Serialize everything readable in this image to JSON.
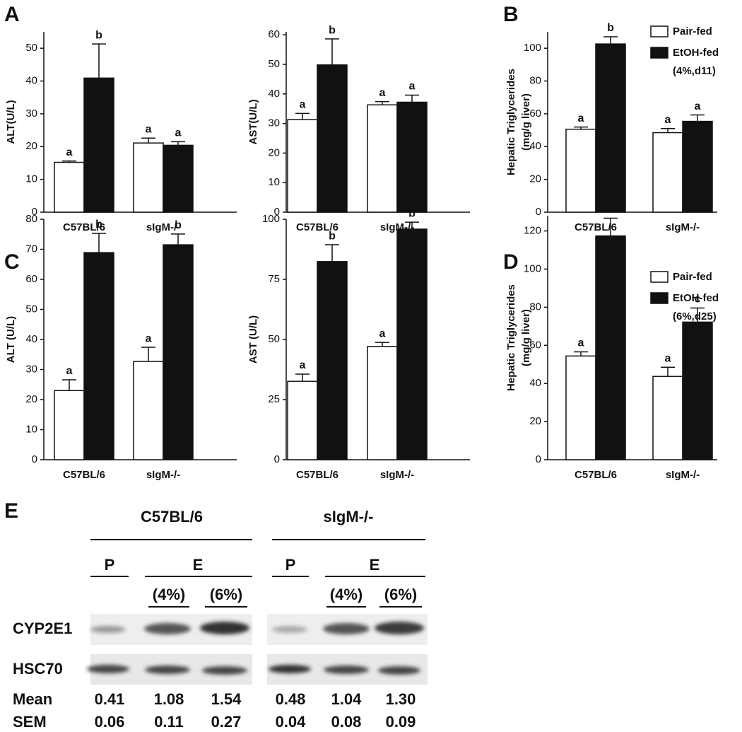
{
  "panels": [
    "A",
    "B",
    "C",
    "D",
    "E"
  ],
  "chart_data": [
    {
      "type": "bar",
      "ylabel": [
        "ALT(U/L)"
      ],
      "categories": [
        "C57BL/6",
        "sIgM-/-"
      ],
      "ylim": [
        0,
        55
      ],
      "yticks": [
        0,
        10,
        20,
        30,
        40,
        50
      ],
      "series": [
        {
          "name": "Pair-fed",
          "color": "#ffffff",
          "values": [
            15.2,
            21.1
          ],
          "errors": [
            0.4,
            1.5
          ],
          "letters": [
            "a",
            "a"
          ]
        },
        {
          "name": "EtOH-fed",
          "color": "#111111",
          "values": [
            40.9,
            20.4
          ],
          "errors": [
            10.4,
            1.1
          ],
          "letters": [
            "b",
            "a"
          ]
        }
      ]
    },
    {
      "type": "bar",
      "ylabel": [
        "AST(U/L)"
      ],
      "categories": [
        "C57BL/6",
        "sIgM-/-"
      ],
      "ylim": [
        0,
        61
      ],
      "yticks": [
        0,
        10,
        20,
        30,
        40,
        50,
        60
      ],
      "series": [
        {
          "name": "Pair-fed",
          "color": "#ffffff",
          "values": [
            31.3,
            36.3
          ],
          "errors": [
            2.1,
            1.1
          ],
          "letters": [
            "a",
            "a"
          ]
        },
        {
          "name": "EtOH-fed",
          "color": "#111111",
          "values": [
            49.8,
            37.2
          ],
          "errors": [
            8.8,
            2.4
          ],
          "letters": [
            "b",
            "a"
          ]
        }
      ]
    },
    {
      "type": "bar",
      "ylabel": [
        "Hepatic Triglycerides",
        "(mg/g liver)"
      ],
      "categories": [
        "C57BL/6",
        "sIgM-/-"
      ],
      "ylim": [
        0,
        110
      ],
      "yticks": [
        0,
        20,
        40,
        60,
        80,
        100
      ],
      "legend_note": "(4%,d11)",
      "series": [
        {
          "name": "Pair-fed",
          "color": "#ffffff",
          "values": [
            50.6,
            48.5
          ],
          "errors": [
            1.3,
            2.5
          ],
          "letters": [
            "a",
            "a"
          ]
        },
        {
          "name": "EtOH-fed",
          "color": "#111111",
          "values": [
            102.6,
            55.4
          ],
          "errors": [
            4.4,
            3.9
          ],
          "letters": [
            "b",
            "a"
          ]
        }
      ]
    },
    {
      "type": "bar",
      "ylabel": [
        "ALT (U/L)"
      ],
      "categories": [
        "C57BL/6",
        "sIgM-/-"
      ],
      "ylim": [
        0,
        80
      ],
      "yticks": [
        0,
        10,
        20,
        30,
        40,
        50,
        60,
        70,
        80
      ],
      "series": [
        {
          "name": "Pair-fed",
          "color": "#ffffff",
          "values": [
            23,
            32.7
          ],
          "errors": [
            3.6,
            4.7
          ],
          "letters": [
            "a",
            "a"
          ]
        },
        {
          "name": "EtOH-fed",
          "color": "#111111",
          "values": [
            68.9,
            71.5
          ],
          "errors": [
            6.4,
            3.6
          ],
          "letters": [
            "b",
            "b"
          ]
        }
      ]
    },
    {
      "type": "bar",
      "ylabel": [
        "AST (U/L)"
      ],
      "categories": [
        "C57BL/6",
        "sIgM-/-"
      ],
      "ylim": [
        0,
        100
      ],
      "yticks": [
        0,
        25,
        50,
        75,
        100
      ],
      "series": [
        {
          "name": "Pair-fed",
          "color": "#ffffff",
          "values": [
            32.6,
            47.1
          ],
          "errors": [
            3,
            1.7
          ],
          "letters": [
            "a",
            "a"
          ]
        },
        {
          "name": "EtOH-fed",
          "color": "#111111",
          "values": [
            82.4,
            95.9
          ],
          "errors": [
            7,
            2.9
          ],
          "letters": [
            "b",
            "b"
          ]
        }
      ]
    },
    {
      "type": "bar",
      "ylabel": [
        "Hepatic Triglycerides",
        "(mg/g liver)"
      ],
      "categories": [
        "C57BL/6",
        "sIgM-/-"
      ],
      "ylim": [
        0,
        128
      ],
      "yticks": [
        0,
        20,
        40,
        60,
        80,
        100,
        120
      ],
      "legend_note": "(6%,d25)",
      "series": [
        {
          "name": "Pair-fed",
          "color": "#ffffff",
          "values": [
            54.4,
            43.7
          ],
          "errors": [
            2.2,
            4.8
          ],
          "letters": [
            "a",
            "a"
          ]
        },
        {
          "name": "EtOH-fed",
          "color": "#111111",
          "values": [
            117.4,
            72.2
          ],
          "errors": [
            9.3,
            7.4
          ],
          "letters": [
            "b",
            "c"
          ]
        }
      ]
    }
  ],
  "blot": {
    "groups": [
      {
        "name": "C57BL/6",
        "control": "P",
        "treated": "E",
        "doses": [
          "(4%)",
          "(6%)"
        ]
      },
      {
        "name": "sIgM-/-",
        "control": "P",
        "treated": "E",
        "doses": [
          "(4%)",
          "(6%)"
        ]
      }
    ],
    "rows": [
      "CYP2E1",
      "HSC70"
    ],
    "stats": [
      {
        "label": "Mean",
        "values": [
          "0.41",
          "1.08",
          "1.54",
          "0.48",
          "1.04",
          "1.30"
        ]
      },
      {
        "label": "SEM",
        "values": [
          "0.06",
          "0.11",
          "0.27",
          "0.04",
          "0.08",
          "0.09"
        ]
      }
    ]
  }
}
